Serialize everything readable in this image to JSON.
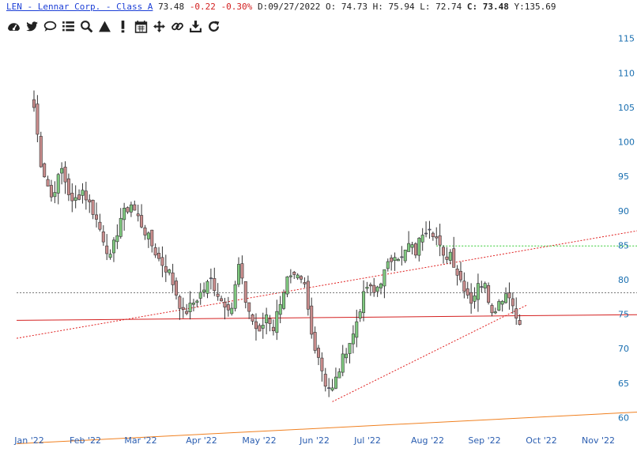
{
  "header": {
    "ticker": "LEN - Lennar Corp. - Class A",
    "price": "73.48",
    "change": "-0.22",
    "change_pct": "-0.30%",
    "date_label": "D:",
    "date": "09/27/2022",
    "open_label": "O:",
    "open": "74.73",
    "high_label": "H:",
    "high": "75.94",
    "low_label": "L:",
    "low": "72.74",
    "close_label": "C:",
    "close": "73.48",
    "volume_label": "Y:",
    "volume": "135.69"
  },
  "toolbar": {
    "items": [
      "dashboard-icon",
      "twitter-icon",
      "comment-icon",
      "list-icon",
      "search-icon",
      "triangle-icon",
      "exclamation-icon",
      "calendar-icon",
      "move-icon",
      "link-icon",
      "download-icon",
      "refresh-icon"
    ]
  },
  "colors": {
    "up": "#7fc97f",
    "down": "#c98c8c",
    "neutral": "#8a8ad8",
    "trend_solid": "#d42020",
    "trend_dotted": "#e02020",
    "trend_orange": "#f08020",
    "level_green": "#33cc33",
    "level_gray": "#777777"
  },
  "chart_data": {
    "type": "candlestick",
    "title": "LEN - Lennar Corp. - Class A",
    "ylim": [
      55,
      116
    ],
    "y_ticks": [
      60,
      65,
      70,
      75,
      80,
      85,
      90,
      95,
      100,
      105,
      110,
      115
    ],
    "x_ticks": [
      "Jan '22",
      "Feb '22",
      "Mar '22",
      "Apr '22",
      "May '22",
      "Jun '22",
      "Jul '22",
      "Aug '22",
      "Sep '22",
      "Oct '22",
      "Nov '22"
    ],
    "anchors": [
      {
        "d": 0,
        "p": 105
      },
      {
        "d": 2,
        "p": 97
      },
      {
        "d": 5,
        "p": 92
      },
      {
        "d": 8,
        "p": 96
      },
      {
        "d": 11,
        "p": 91
      },
      {
        "d": 14,
        "p": 93
      },
      {
        "d": 17,
        "p": 90
      },
      {
        "d": 20,
        "p": 86
      },
      {
        "d": 22,
        "p": 83
      },
      {
        "d": 25,
        "p": 89
      },
      {
        "d": 28,
        "p": 91
      },
      {
        "d": 30,
        "p": 89
      },
      {
        "d": 33,
        "p": 86
      },
      {
        "d": 36,
        "p": 83
      },
      {
        "d": 39,
        "p": 81
      },
      {
        "d": 41,
        "p": 78
      },
      {
        "d": 43,
        "p": 75
      },
      {
        "d": 45,
        "p": 76
      },
      {
        "d": 48,
        "p": 78
      },
      {
        "d": 51,
        "p": 80
      },
      {
        "d": 54,
        "p": 77
      },
      {
        "d": 57,
        "p": 76
      },
      {
        "d": 59,
        "p": 82
      },
      {
        "d": 61,
        "p": 77
      },
      {
        "d": 63,
        "p": 74
      },
      {
        "d": 65,
        "p": 72
      },
      {
        "d": 67,
        "p": 75
      },
      {
        "d": 69,
        "p": 73
      },
      {
        "d": 71,
        "p": 77
      },
      {
        "d": 73,
        "p": 80
      },
      {
        "d": 76,
        "p": 80
      },
      {
        "d": 78,
        "p": 79
      },
      {
        "d": 80,
        "p": 72
      },
      {
        "d": 82,
        "p": 69
      },
      {
        "d": 84,
        "p": 65
      },
      {
        "d": 86,
        "p": 64
      },
      {
        "d": 88,
        "p": 67
      },
      {
        "d": 90,
        "p": 70
      },
      {
        "d": 92,
        "p": 72
      },
      {
        "d": 94,
        "p": 76
      },
      {
        "d": 96,
        "p": 79
      },
      {
        "d": 98,
        "p": 78
      },
      {
        "d": 100,
        "p": 80
      },
      {
        "d": 102,
        "p": 82
      },
      {
        "d": 104,
        "p": 84
      },
      {
        "d": 106,
        "p": 83
      },
      {
        "d": 108,
        "p": 85
      },
      {
        "d": 110,
        "p": 84
      },
      {
        "d": 112,
        "p": 87
      },
      {
        "d": 114,
        "p": 88
      },
      {
        "d": 116,
        "p": 86
      },
      {
        "d": 118,
        "p": 83
      },
      {
        "d": 120,
        "p": 84
      },
      {
        "d": 122,
        "p": 81
      },
      {
        "d": 124,
        "p": 79
      },
      {
        "d": 126,
        "p": 77
      },
      {
        "d": 128,
        "p": 79
      },
      {
        "d": 130,
        "p": 80
      },
      {
        "d": 132,
        "p": 75
      },
      {
        "d": 134,
        "p": 77
      },
      {
        "d": 136,
        "p": 78
      },
      {
        "d": 138,
        "p": 77
      },
      {
        "d": 139,
        "p": 74
      },
      {
        "d": 140,
        "p": 73.5
      }
    ],
    "lines": [
      {
        "name": "trend-dotted-upper",
        "style": "dotted",
        "color": "#e02020",
        "p1": [
          -5,
          71.5
        ],
        "p2": [
          190,
          88.5
        ]
      },
      {
        "name": "trend-solid-red",
        "style": "solid",
        "color": "#d42020",
        "p1": [
          -5,
          74.1
        ],
        "p2": [
          190,
          75
        ]
      },
      {
        "name": "trend-orange",
        "style": "solid",
        "color": "#f08020",
        "p1": [
          -5,
          56.2
        ],
        "p2": [
          190,
          61.2
        ]
      },
      {
        "name": "trend-dotted-lower",
        "style": "dotted",
        "color": "#e02020",
        "p1": [
          86,
          62.3
        ],
        "p2": [
          142,
          76.3
        ]
      },
      {
        "name": "level-green",
        "style": "dotted",
        "color": "#33cc33",
        "p1": [
          116,
          84.9
        ],
        "p2": [
          190,
          84.9
        ]
      },
      {
        "name": "level-gray",
        "style": "dotted",
        "color": "#777777",
        "p1": [
          -5,
          78.1
        ],
        "p2": [
          190,
          78.1
        ]
      }
    ]
  }
}
